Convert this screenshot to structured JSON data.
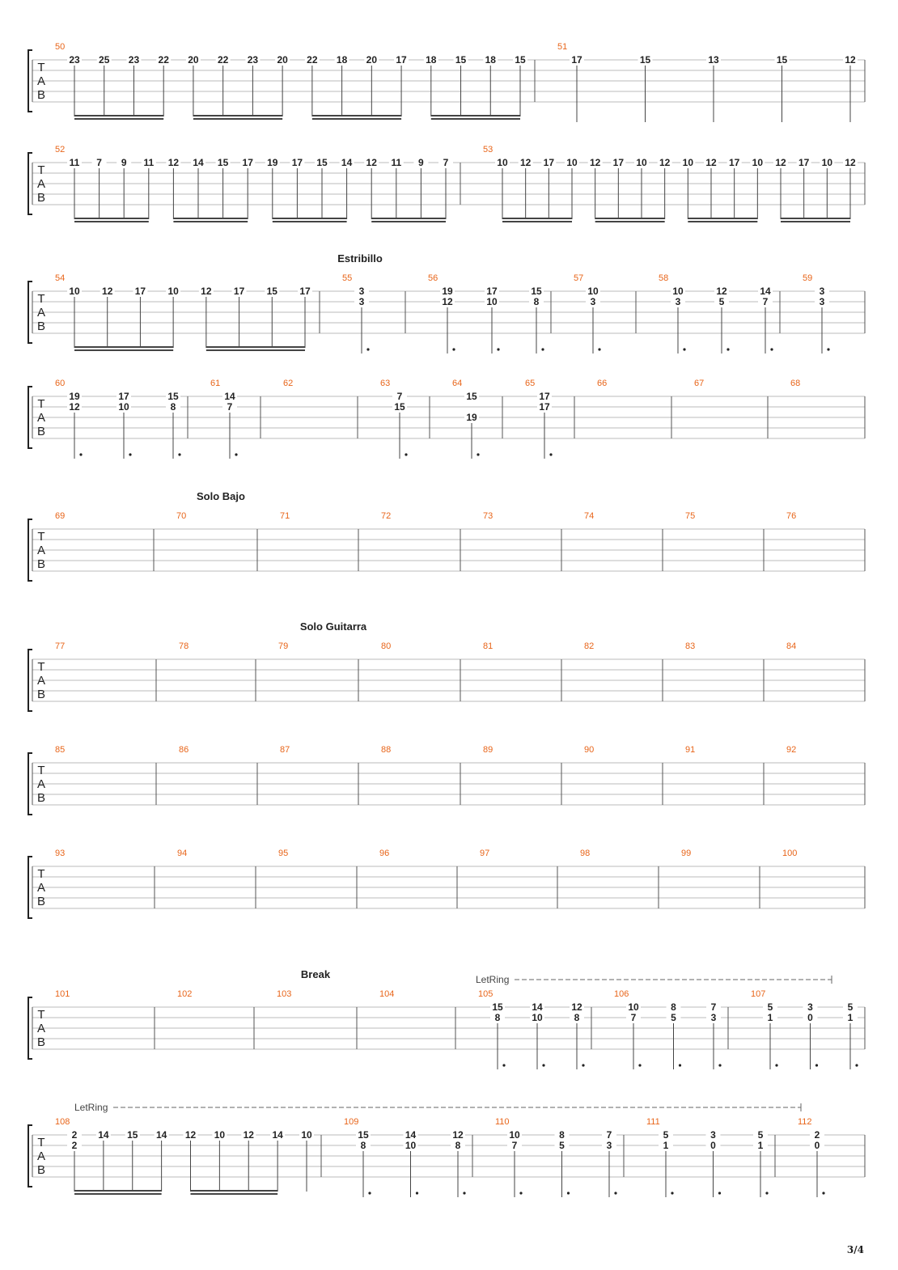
{
  "page": {
    "number": "3/4"
  },
  "colors": {
    "measure_number": "#e8651a",
    "ink": "#222222",
    "line": "#555555",
    "staff": "#bbbbbb"
  },
  "systems": [
    {
      "section": "",
      "measures": [
        {
          "n": "50",
          "notes": [
            [
              "23"
            ],
            [
              "25"
            ],
            [
              "23"
            ],
            [
              "22"
            ],
            [
              "20"
            ],
            [
              "22"
            ],
            [
              "23"
            ],
            [
              "20"
            ],
            [
              "22"
            ],
            [
              "18"
            ],
            [
              "20"
            ],
            [
              "17"
            ],
            [
              "18"
            ],
            [
              "15"
            ],
            [
              "18"
            ],
            [
              "15"
            ]
          ]
        },
        {
          "n": "51",
          "notes": [
            [
              "17"
            ],
            [
              "15"
            ],
            [
              "13"
            ],
            [
              "15"
            ],
            [
              "12"
            ]
          ]
        }
      ]
    },
    {
      "section": "",
      "measures": [
        {
          "n": "52",
          "notes": [
            [
              "11"
            ],
            [
              "7"
            ],
            [
              "9"
            ],
            [
              "11"
            ],
            [
              "12"
            ],
            [
              "14"
            ],
            [
              "15"
            ],
            [
              "17"
            ],
            [
              "19"
            ],
            [
              "17"
            ],
            [
              "15"
            ],
            [
              "14"
            ],
            [
              "12"
            ],
            [
              "11"
            ],
            [
              "9"
            ],
            [
              "7"
            ]
          ]
        },
        {
          "n": "53",
          "notes": [
            [
              "10"
            ],
            [
              "12"
            ],
            [
              "17"
            ],
            [
              "10"
            ],
            [
              "12"
            ],
            [
              "17"
            ],
            [
              "10"
            ],
            [
              "12"
            ],
            [
              "10"
            ],
            [
              "12"
            ],
            [
              "17"
            ],
            [
              "10"
            ],
            [
              "12"
            ],
            [
              "17"
            ],
            [
              "10"
            ],
            [
              "12"
            ]
          ]
        }
      ]
    },
    {
      "section": "Estribillo",
      "measures": [
        {
          "n": "54",
          "notes": [
            [
              "10"
            ],
            [
              "12"
            ],
            [
              "17"
            ],
            [
              "10"
            ],
            [
              "12"
            ],
            [
              "17"
            ],
            [
              "15"
            ],
            [
              "17"
            ]
          ]
        },
        {
          "n": "55",
          "notes": [
            [
              "3",
              "3"
            ]
          ]
        },
        {
          "n": "56",
          "notes": [
            [
              "19",
              "12"
            ],
            [
              "17",
              "10"
            ],
            [
              "15",
              "8"
            ]
          ]
        },
        {
          "n": "57",
          "notes": [
            [
              "10",
              "3"
            ]
          ]
        },
        {
          "n": "58",
          "notes": [
            [
              "10",
              "3"
            ],
            [
              "12",
              "5"
            ],
            [
              "14",
              "7"
            ]
          ]
        },
        {
          "n": "59",
          "notes": [
            [
              "3",
              "3"
            ]
          ]
        }
      ]
    },
    {
      "section": "",
      "measures": [
        {
          "n": "60",
          "notes": [
            [
              "19",
              "12"
            ],
            [
              "17",
              "10"
            ],
            [
              "15",
              "8"
            ]
          ]
        },
        {
          "n": "61",
          "notes": [
            [
              "14",
              "7"
            ]
          ]
        },
        {
          "n": "62",
          "notes": []
        },
        {
          "n": "63",
          "notes": [
            [
              "7",
              "15"
            ]
          ]
        },
        {
          "n": "64",
          "notes": [
            [
              "15",
              "",
              "19"
            ]
          ]
        },
        {
          "n": "65",
          "notes": [
            [
              "17",
              "17"
            ]
          ]
        },
        {
          "n": "66",
          "notes": []
        },
        {
          "n": "67",
          "notes": []
        },
        {
          "n": "68",
          "notes": []
        }
      ]
    },
    {
      "section": "Solo Bajo",
      "measures": [
        {
          "n": "69",
          "notes": []
        },
        {
          "n": "70",
          "notes": []
        },
        {
          "n": "71",
          "notes": []
        },
        {
          "n": "72",
          "notes": []
        },
        {
          "n": "73",
          "notes": []
        },
        {
          "n": "74",
          "notes": []
        },
        {
          "n": "75",
          "notes": []
        },
        {
          "n": "76",
          "notes": []
        }
      ]
    },
    {
      "section": "Solo Guitarra",
      "measures": [
        {
          "n": "77",
          "notes": []
        },
        {
          "n": "78",
          "notes": []
        },
        {
          "n": "79",
          "notes": []
        },
        {
          "n": "80",
          "notes": []
        },
        {
          "n": "81",
          "notes": []
        },
        {
          "n": "82",
          "notes": []
        },
        {
          "n": "83",
          "notes": []
        },
        {
          "n": "84",
          "notes": []
        }
      ]
    },
    {
      "section": "",
      "measures": [
        {
          "n": "85",
          "notes": []
        },
        {
          "n": "86",
          "notes": []
        },
        {
          "n": "87",
          "notes": []
        },
        {
          "n": "88",
          "notes": []
        },
        {
          "n": "89",
          "notes": []
        },
        {
          "n": "90",
          "notes": []
        },
        {
          "n": "91",
          "notes": []
        },
        {
          "n": "92",
          "notes": []
        }
      ]
    },
    {
      "section": "",
      "measures": [
        {
          "n": "93",
          "notes": []
        },
        {
          "n": "94",
          "notes": []
        },
        {
          "n": "95",
          "notes": []
        },
        {
          "n": "96",
          "notes": []
        },
        {
          "n": "97",
          "notes": []
        },
        {
          "n": "98",
          "notes": []
        },
        {
          "n": "99",
          "notes": []
        },
        {
          "n": "100",
          "notes": []
        }
      ]
    },
    {
      "section": "Break",
      "annotation": "LetRing",
      "measures": [
        {
          "n": "101",
          "notes": []
        },
        {
          "n": "102",
          "notes": []
        },
        {
          "n": "103",
          "notes": []
        },
        {
          "n": "104",
          "notes": []
        },
        {
          "n": "105",
          "notes": [
            [
              "15",
              "8"
            ],
            [
              "14",
              "10"
            ],
            [
              "12",
              "8"
            ]
          ]
        },
        {
          "n": "106",
          "notes": [
            [
              "10",
              "7"
            ],
            [
              "8",
              "5"
            ],
            [
              "7",
              "3"
            ]
          ]
        },
        {
          "n": "107",
          "notes": [
            [
              "5",
              "1"
            ],
            [
              "3",
              "0"
            ],
            [
              "5",
              "1"
            ]
          ]
        }
      ]
    },
    {
      "section": "",
      "annotation": "LetRing",
      "measures": [
        {
          "n": "108",
          "notes": [
            [
              "2",
              "2"
            ],
            [
              "14"
            ],
            [
              "15"
            ],
            [
              "14"
            ],
            [
              "12"
            ],
            [
              "10"
            ],
            [
              "12"
            ],
            [
              "14"
            ],
            [
              "10"
            ]
          ]
        },
        {
          "n": "109",
          "notes": [
            [
              "15",
              "8"
            ],
            [
              "14",
              "10"
            ],
            [
              "12",
              "8"
            ]
          ]
        },
        {
          "n": "110",
          "notes": [
            [
              "10",
              "7"
            ],
            [
              "8",
              "5"
            ],
            [
              "7",
              "3"
            ]
          ]
        },
        {
          "n": "111",
          "notes": [
            [
              "5",
              "1"
            ],
            [
              "3",
              "0"
            ],
            [
              "5",
              "1"
            ]
          ]
        },
        {
          "n": "112",
          "notes": [
            [
              "2",
              "0"
            ]
          ]
        }
      ]
    }
  ]
}
